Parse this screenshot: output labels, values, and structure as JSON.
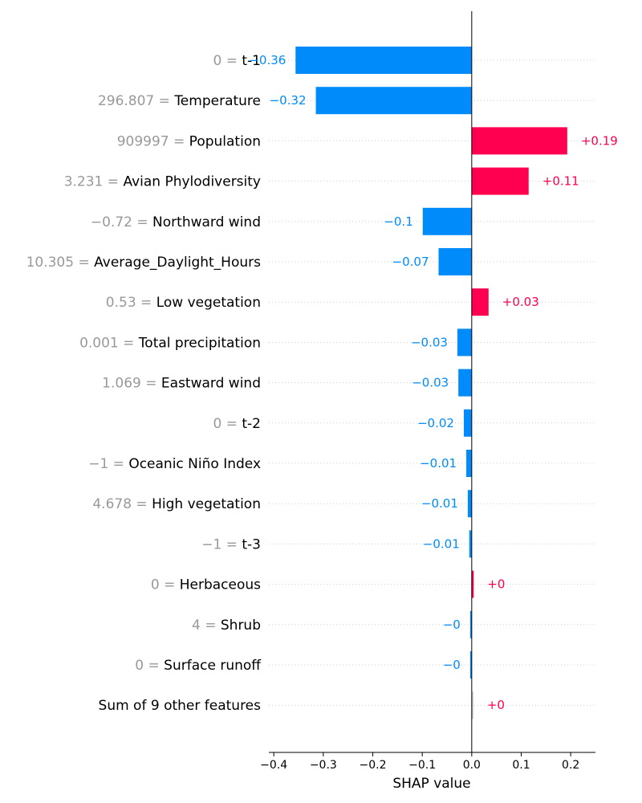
{
  "chart_data": {
    "type": "bar",
    "orientation": "horizontal",
    "title": "",
    "xlabel": "SHAP value",
    "ylabel": "",
    "xlim": [
      -0.41,
      0.25
    ],
    "xticks": [
      -0.4,
      -0.3,
      -0.2,
      -0.1,
      0.0,
      0.1,
      0.2
    ],
    "xtick_labels": [
      "−0.4",
      "−0.3",
      "−0.2",
      "−0.1",
      "0.0",
      "0.1",
      "0.2"
    ],
    "grid": "dotted horizontal row lines",
    "colors": {
      "positive": "#ff0051",
      "negative": "#008bfb",
      "neutral": "#cccccc"
    },
    "features": [
      {
        "value": "0 = ",
        "name": "t-1",
        "shap": -0.356,
        "label": "−0.36"
      },
      {
        "value": "296.807 = ",
        "name": "Temperature",
        "shap": -0.315,
        "label": "−0.32"
      },
      {
        "value": "909997 = ",
        "name": "Population",
        "shap": 0.193,
        "label": "+0.19"
      },
      {
        "value": "3.231 = ",
        "name": "Avian Phylodiversity",
        "shap": 0.115,
        "label": "+0.11"
      },
      {
        "value": "−0.72 = ",
        "name": "Northward wind",
        "shap": -0.099,
        "label": "−0.1"
      },
      {
        "value": "10.305 = ",
        "name": "Average_Daylight_Hours",
        "shap": -0.067,
        "label": "−0.07"
      },
      {
        "value": "0.53 = ",
        "name": "Low vegetation",
        "shap": 0.034,
        "label": "+0.03"
      },
      {
        "value": "0.001 = ",
        "name": "Total precipitation",
        "shap": -0.029,
        "label": "−0.03"
      },
      {
        "value": "1.069 = ",
        "name": "Eastward wind",
        "shap": -0.027,
        "label": "−0.03"
      },
      {
        "value": "0 = ",
        "name": "t-2",
        "shap": -0.016,
        "label": "−0.02"
      },
      {
        "value": "−1 = ",
        "name": "Oceanic Niño Index",
        "shap": -0.011,
        "label": "−0.01"
      },
      {
        "value": "4.678 = ",
        "name": "High vegetation",
        "shap": -0.008,
        "label": "−0.01"
      },
      {
        "value": "−1 = ",
        "name": "t-3",
        "shap": -0.005,
        "label": "−0.01"
      },
      {
        "value": "0 = ",
        "name": "Herbaceous",
        "shap": 0.004,
        "label": "+0"
      },
      {
        "value": "4 = ",
        "name": "Shrub",
        "shap": -0.002,
        "label": "−0"
      },
      {
        "value": "0 = ",
        "name": "Surface runoff",
        "shap": -0.001,
        "label": "−0"
      },
      {
        "value": "",
        "name": "Sum of 9 other features",
        "shap": 0.0,
        "label": "+0",
        "neutral": true
      }
    ]
  }
}
